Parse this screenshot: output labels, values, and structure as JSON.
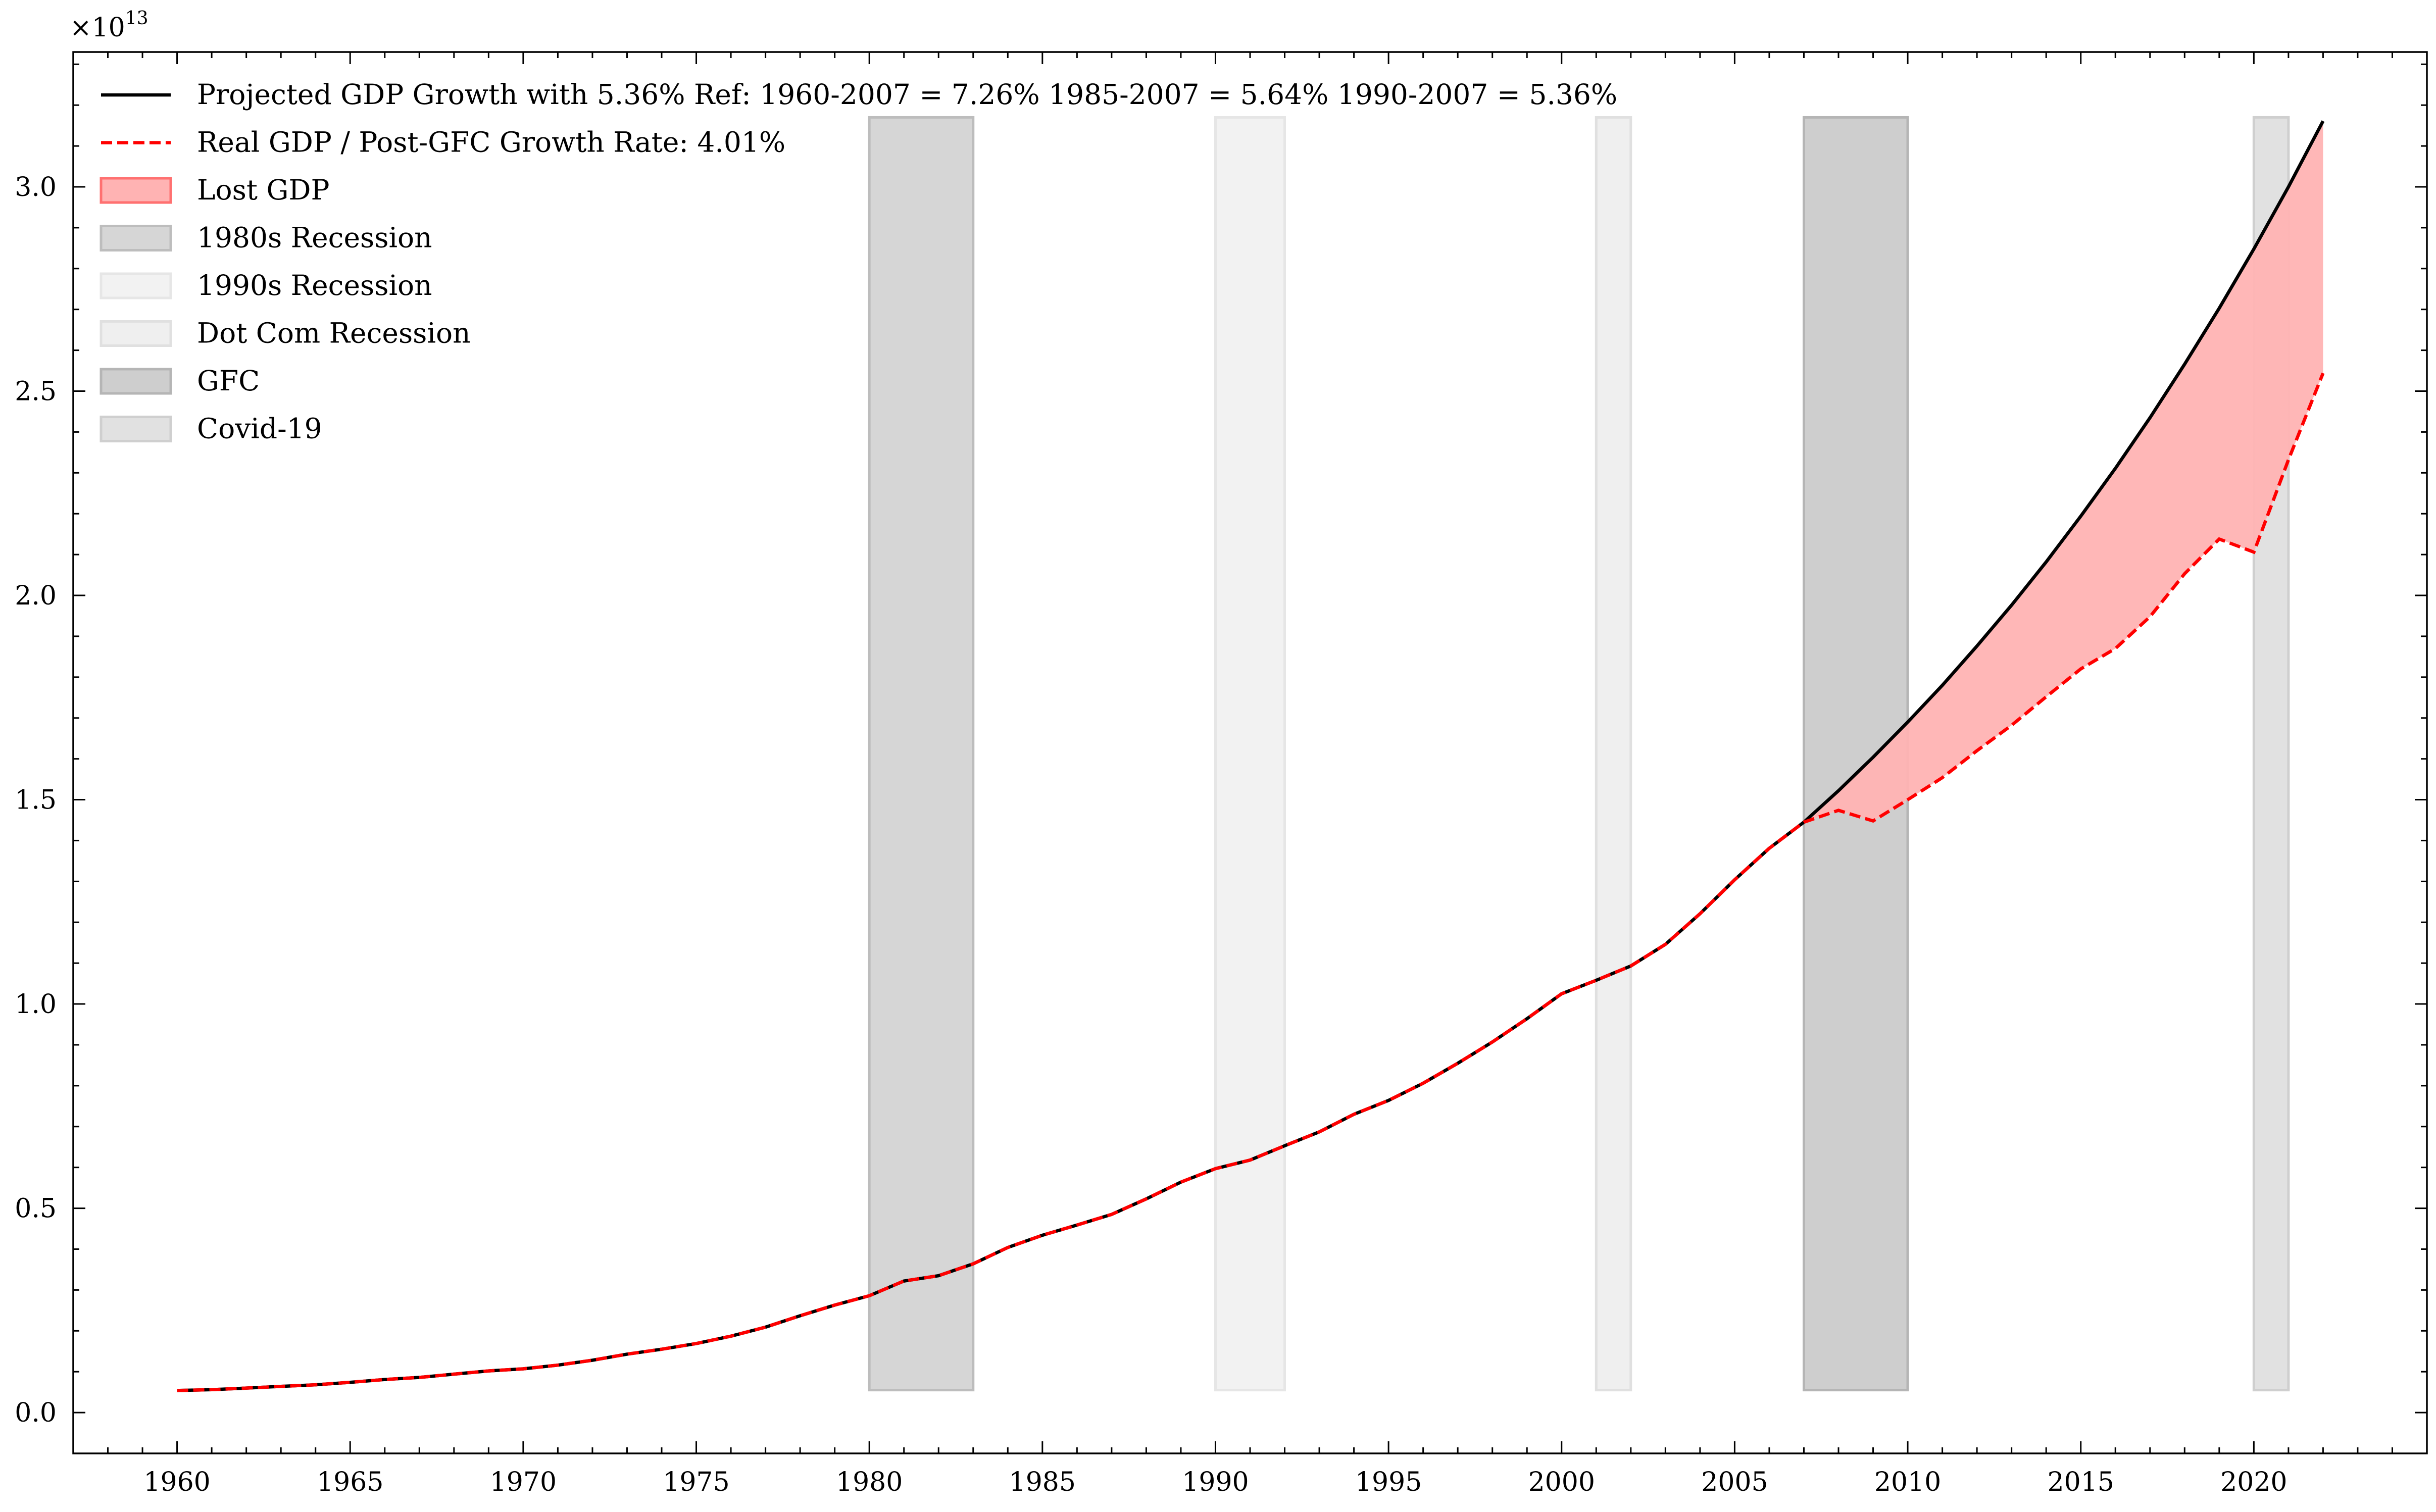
{
  "chart_data": {
    "type": "line",
    "title": "",
    "xlabel": "",
    "ylabel": "",
    "y_exponent_label": "×10^13",
    "y_exponent_base": "×10",
    "y_exponent_power": "13",
    "y_multiplier": 10000000000000.0,
    "xlim": [
      1957,
      2025
    ],
    "ylim": [
      -0.1,
      3.33
    ],
    "x_ticks": [
      1960,
      1965,
      1970,
      1975,
      1980,
      1985,
      1990,
      1995,
      2000,
      2005,
      2010,
      2015,
      2020
    ],
    "x_tick_labels": [
      "1960",
      "1965",
      "1970",
      "1975",
      "1980",
      "1985",
      "1990",
      "1995",
      "2000",
      "2005",
      "2010",
      "2015",
      "2020"
    ],
    "y_ticks": [
      0.0,
      0.5,
      1.0,
      1.5,
      2.0,
      2.5,
      3.0
    ],
    "y_tick_labels": [
      "0.0",
      "0.5",
      "1.0",
      "1.5",
      "2.0",
      "2.5",
      "3.0"
    ],
    "grid": false,
    "legend_placement": "top-left",
    "legend": [
      {
        "label": "Projected GDP Growth with 5.36% Ref: 1960-2007 = 7.26% 1985-2007 = 5.64% 1990-2007 = 5.36%",
        "kind": "line",
        "color": "#000000"
      },
      {
        "label": "Real GDP / Post-GFC Growth Rate: 4.01%",
        "kind": "dashed",
        "color": "#ff0000"
      },
      {
        "label": "Lost GDP",
        "kind": "patch",
        "color": "#ffb3b3",
        "edge": "#ff7070"
      },
      {
        "label": "1980s Recession",
        "kind": "patch",
        "color": "#d6d6d6",
        "edge": "#bdbdbd"
      },
      {
        "label": "1990s Recession",
        "kind": "patch",
        "color": "#f2f2f2",
        "edge": "#e6e6e6"
      },
      {
        "label": "Dot Com Recession",
        "kind": "patch",
        "color": "#efefef",
        "edge": "#e0e0e0"
      },
      {
        "label": "GFC",
        "kind": "patch",
        "color": "#cecece",
        "edge": "#b5b5b5"
      },
      {
        "label": "Covid-19",
        "kind": "patch",
        "color": "#e1e1e1",
        "edge": "#cfcfcf"
      }
    ],
    "recessions": [
      {
        "name": "1980s Recession",
        "start": 1980,
        "end": 1983,
        "color": "#d6d6d6",
        "edge": "#bdbdbd"
      },
      {
        "name": "1990s Recession",
        "start": 1990,
        "end": 1992,
        "color": "#f2f2f2",
        "edge": "#e6e6e6"
      },
      {
        "name": "Dot Com Recession",
        "start": 2001,
        "end": 2002,
        "color": "#efefef",
        "edge": "#e0e0e0"
      },
      {
        "name": "GFC",
        "start": 2007,
        "end": 2010,
        "color": "#cecece",
        "edge": "#b5b5b5"
      },
      {
        "name": "Covid-19",
        "start": 2020,
        "end": 2021,
        "color": "#e1e1e1",
        "edge": "#cfcfcf"
      }
    ],
    "recession_band_ylim": [
      0.055,
      3.17
    ],
    "x": [
      1960,
      1961,
      1962,
      1963,
      1964,
      1965,
      1966,
      1967,
      1968,
      1969,
      1970,
      1971,
      1972,
      1973,
      1974,
      1975,
      1976,
      1977,
      1978,
      1979,
      1980,
      1981,
      1982,
      1983,
      1984,
      1985,
      1986,
      1987,
      1988,
      1989,
      1990,
      1991,
      1992,
      1993,
      1994,
      1995,
      1996,
      1997,
      1998,
      1999,
      2000,
      2001,
      2002,
      2003,
      2004,
      2005,
      2006,
      2007,
      2008,
      2009,
      2010,
      2011,
      2012,
      2013,
      2014,
      2015,
      2016,
      2017,
      2018,
      2019,
      2020,
      2021,
      2022
    ],
    "series": [
      {
        "name": "Real GDP / Post-GFC Growth Rate: 4.01%",
        "color": "#ff0000",
        "style": "dashed",
        "values": [
          0.054,
          0.056,
          0.06,
          0.064,
          0.068,
          0.074,
          0.081,
          0.086,
          0.094,
          0.102,
          0.107,
          0.116,
          0.128,
          0.143,
          0.155,
          0.169,
          0.187,
          0.209,
          0.237,
          0.263,
          0.286,
          0.322,
          0.335,
          0.364,
          0.404,
          0.434,
          0.459,
          0.485,
          0.523,
          0.564,
          0.597,
          0.618,
          0.653,
          0.687,
          0.73,
          0.764,
          0.806,
          0.855,
          0.907,
          0.964,
          1.025,
          1.058,
          1.093,
          1.146,
          1.221,
          1.304,
          1.381,
          1.445,
          1.474,
          1.448,
          1.5,
          1.554,
          1.62,
          1.682,
          1.752,
          1.82,
          1.87,
          1.948,
          2.053,
          2.138,
          2.106,
          2.332,
          2.544
        ]
      },
      {
        "name": "Projected GDP Growth with 5.36% Ref: 1960-2007 = 7.26% 1985-2007 = 5.64% 1990-2007 = 5.36%",
        "color": "#000000",
        "style": "solid",
        "values": [
          0.054,
          0.056,
          0.06,
          0.064,
          0.068,
          0.074,
          0.081,
          0.086,
          0.094,
          0.102,
          0.107,
          0.116,
          0.128,
          0.143,
          0.155,
          0.169,
          0.187,
          0.209,
          0.237,
          0.263,
          0.286,
          0.322,
          0.335,
          0.364,
          0.404,
          0.434,
          0.459,
          0.485,
          0.523,
          0.564,
          0.597,
          0.618,
          0.653,
          0.687,
          0.73,
          0.764,
          0.806,
          0.855,
          0.907,
          0.964,
          1.025,
          1.058,
          1.093,
          1.146,
          1.221,
          1.304,
          1.381,
          1.445,
          1.522,
          1.604,
          1.69,
          1.78,
          1.876,
          1.976,
          2.082,
          2.194,
          2.311,
          2.435,
          2.566,
          2.703,
          2.848,
          3.0,
          3.161
        ]
      }
    ],
    "lost_gdp": {
      "x_start": 2007,
      "x_end": 2022,
      "color": "#ffb3b3"
    }
  }
}
